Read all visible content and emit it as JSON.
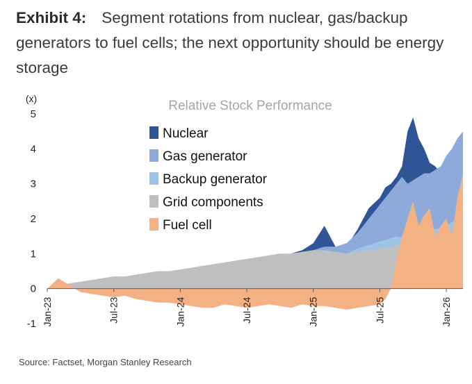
{
  "header": {
    "exhibit_label": "Exhibit 4:",
    "title": "Segment rotations from nuclear, gas/backup generators to fuel cells; the next opportunity should be energy storage"
  },
  "source": "Source: Factset, Morgan Stanley Research",
  "chart_data": {
    "type": "area",
    "title": "Relative Stock Performance",
    "ylabel": "(x)",
    "xlabel": "",
    "ylim": [
      -1,
      5
    ],
    "yticks": [
      "5",
      "4",
      "3",
      "2",
      "1",
      "0",
      "-1"
    ],
    "xlim": [
      0,
      37.5
    ],
    "xticks": [
      {
        "label": "Jan-23",
        "x": 0
      },
      {
        "label": "Jul-23",
        "x": 6
      },
      {
        "label": "Jan-24",
        "x": 12
      },
      {
        "label": "Jul-24",
        "x": 18
      },
      {
        "label": "Jan-25",
        "x": 24
      },
      {
        "label": "Jul-25",
        "x": 30
      },
      {
        "label": "Jan-26",
        "x": 36
      }
    ],
    "legend_position": "top-left",
    "x": [
      0,
      1,
      2,
      3,
      4,
      5,
      6,
      7,
      8,
      9,
      10,
      11,
      12,
      13,
      14,
      15,
      16,
      17,
      18,
      19,
      20,
      21,
      22,
      23,
      24,
      25,
      26,
      27,
      28,
      29,
      30,
      30.5,
      31,
      31.5,
      32,
      32.5,
      33,
      33.5,
      34,
      34.5,
      35,
      35.5,
      36,
      36.5,
      37,
      37.5
    ],
    "series": [
      {
        "name": "Nuclear",
        "color": "#2f5597",
        "values": [
          0.0,
          0.1,
          0.1,
          0.15,
          0.2,
          0.2,
          0.25,
          0.3,
          0.3,
          0.3,
          0.3,
          0.25,
          0.35,
          0.45,
          0.5,
          0.6,
          0.65,
          0.7,
          0.75,
          0.8,
          0.85,
          0.8,
          1.0,
          1.1,
          1.3,
          1.8,
          1.2,
          1.2,
          1.7,
          2.3,
          2.6,
          2.9,
          3.0,
          3.2,
          3.5,
          4.5,
          4.9,
          4.3,
          4.0,
          3.6,
          3.5,
          3.3,
          3.7,
          3.2,
          3.6,
          3.5
        ]
      },
      {
        "name": "Gas generator",
        "color": "#8eaadb",
        "values": [
          0.0,
          0.1,
          0.1,
          0.15,
          0.2,
          0.25,
          0.3,
          0.35,
          0.35,
          0.35,
          0.4,
          0.35,
          0.45,
          0.5,
          0.55,
          0.6,
          0.7,
          0.75,
          0.8,
          0.85,
          0.9,
          0.9,
          1.0,
          1.05,
          1.1,
          1.2,
          1.2,
          1.3,
          1.6,
          2.0,
          2.4,
          2.6,
          2.8,
          3.0,
          3.2,
          3.0,
          3.1,
          3.2,
          3.3,
          3.3,
          3.4,
          3.5,
          3.8,
          4.0,
          4.3,
          4.5
        ]
      },
      {
        "name": "Backup generator",
        "color": "#9dc3e6",
        "values": [
          0.0,
          0.05,
          0.1,
          0.15,
          0.2,
          0.2,
          0.25,
          0.3,
          0.3,
          0.35,
          0.4,
          0.4,
          0.45,
          0.5,
          0.55,
          0.55,
          0.6,
          0.65,
          0.7,
          0.75,
          0.8,
          0.85,
          0.9,
          0.95,
          1.0,
          1.05,
          1.0,
          1.0,
          1.15,
          1.25,
          1.35,
          1.4,
          1.45,
          1.5,
          1.45,
          1.5,
          1.55,
          1.6,
          1.6,
          1.65,
          1.7,
          1.75,
          1.8,
          1.9,
          2.0,
          2.1
        ]
      },
      {
        "name": "Grid components",
        "color": "#bfbfbf",
        "values": [
          0.0,
          0.1,
          0.15,
          0.2,
          0.25,
          0.3,
          0.35,
          0.35,
          0.4,
          0.45,
          0.5,
          0.5,
          0.55,
          0.6,
          0.65,
          0.7,
          0.75,
          0.8,
          0.85,
          0.9,
          0.95,
          1.0,
          1.0,
          1.05,
          1.1,
          1.1,
          1.05,
          1.0,
          1.05,
          1.1,
          1.15,
          1.2,
          1.2,
          1.25,
          1.25,
          1.3,
          1.35,
          1.35,
          1.4,
          1.45,
          1.45,
          1.5,
          1.55,
          1.6,
          1.7,
          1.75
        ]
      },
      {
        "name": "Fuel cell",
        "color": "#f4b183",
        "values": [
          0.0,
          0.3,
          0.1,
          -0.1,
          -0.15,
          -0.2,
          -0.25,
          -0.2,
          -0.3,
          -0.35,
          -0.4,
          -0.4,
          -0.45,
          -0.5,
          -0.55,
          -0.55,
          -0.45,
          -0.5,
          -0.55,
          -0.5,
          -0.45,
          -0.5,
          -0.55,
          -0.45,
          -0.5,
          -0.5,
          -0.55,
          -0.6,
          -0.55,
          -0.5,
          -0.45,
          -0.3,
          0.0,
          0.8,
          1.5,
          2.0,
          2.5,
          1.8,
          2.1,
          2.3,
          1.5,
          1.8,
          2.0,
          1.5,
          2.6,
          3.3
        ]
      }
    ]
  }
}
